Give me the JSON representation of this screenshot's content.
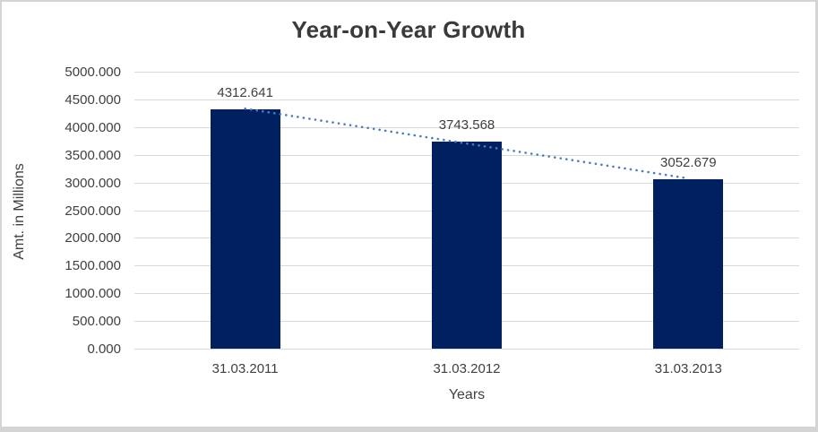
{
  "chart_data": {
    "type": "bar",
    "title": "Year-on-Year Growth",
    "categories": [
      "31.03.2011",
      "31.03.2012",
      "31.03.2013"
    ],
    "values": [
      4312.641,
      3743.568,
      3052.679
    ],
    "data_labels": [
      "4312.641",
      "3743.568",
      "3052.679"
    ],
    "xlabel": "Years",
    "ylabel": "Amt. in Millions",
    "ylim": [
      0,
      5000
    ],
    "ytick_step": 500,
    "ytick_labels": [
      "0.000",
      "500.000",
      "1000.000",
      "1500.000",
      "2000.000",
      "2500.000",
      "3000.000",
      "3500.000",
      "4000.000",
      "4500.000",
      "5000.000"
    ],
    "grid": true,
    "legend": false,
    "trendline": {
      "type": "linear",
      "style": "dotted"
    },
    "colors": {
      "bar": "#002060",
      "trendline": "#4a7ec2",
      "gridline": "#d9d9d9",
      "text": "#404040",
      "title_text": "#3a3a3a",
      "frame_border": "#d4d4d4"
    }
  }
}
